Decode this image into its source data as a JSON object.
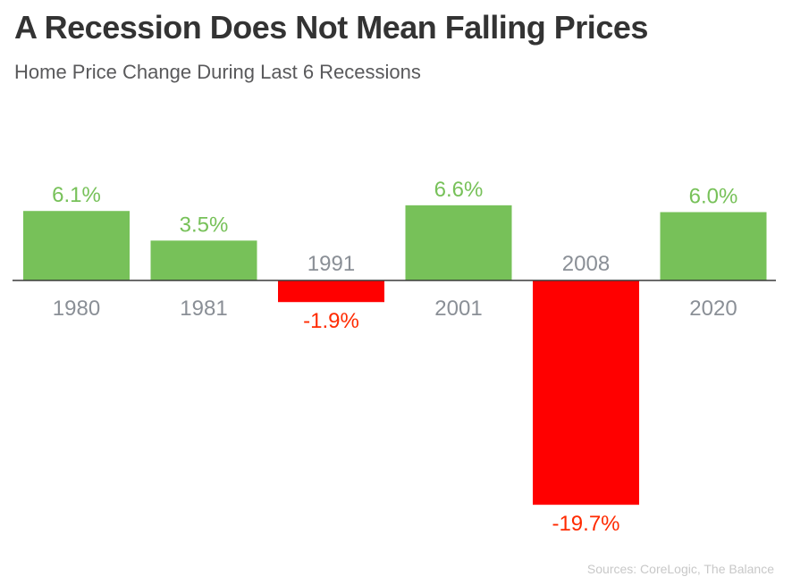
{
  "title": "A Recession Does Not Mean Falling Prices",
  "subtitle": "Home Price Change During Last 6 Recessions",
  "source": "Sources: CoreLogic, The Balance",
  "colors": {
    "positive": "#77c159",
    "negative": "#ff0000",
    "negative_label": "#ff2a00",
    "category_label": "#8a8f96",
    "axis": "#3a3a3a"
  },
  "chart_data": {
    "type": "bar",
    "categories": [
      "1980",
      "1981",
      "1991",
      "2001",
      "2008",
      "2020"
    ],
    "values": [
      6.1,
      3.5,
      -1.9,
      6.6,
      -19.7,
      6.0
    ],
    "data_labels": [
      "6.1%",
      "3.5%",
      "-1.9%",
      "6.6%",
      "-19.7%",
      "6.0%"
    ],
    "ylim": [
      -19.7,
      6.6
    ],
    "grid": false,
    "legend": "none"
  }
}
